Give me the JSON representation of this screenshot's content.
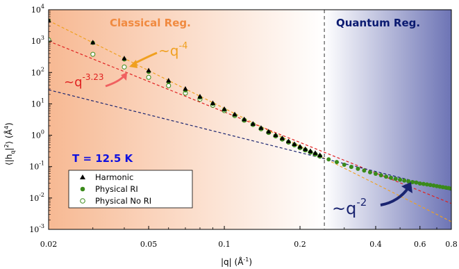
{
  "chart_data": {
    "type": "scatter",
    "xscale": "log",
    "yscale": "log",
    "xlim": [
      0.02,
      0.8
    ],
    "ylim": [
      0.001,
      10000
    ],
    "xlabel_main": "|q| (Å",
    "xlabel_sup": "-1",
    "xlabel_end": ")",
    "ylabel_main": "⟨|h",
    "ylabel_sub": "q",
    "ylabel_mid": "|",
    "ylabel_sup": "2",
    "ylabel_mid2": "⟩ (Å",
    "ylabel_sup2": "4",
    "ylabel_end": ")",
    "x_ticks": [
      {
        "value": 0.02,
        "label": "0.02"
      },
      {
        "value": 0.05,
        "label": "0.05"
      },
      {
        "value": 0.1,
        "label": "0.1"
      },
      {
        "value": 0.2,
        "label": "0.2"
      },
      {
        "value": 0.4,
        "label": "0.4"
      },
      {
        "value": 0.6,
        "label": "0.6"
      },
      {
        "value": 0.8,
        "label": "0.8"
      }
    ],
    "y_ticks": [
      {
        "exp": -3,
        "base": "10",
        "sup": "-3"
      },
      {
        "exp": -2,
        "base": "10",
        "sup": "-2"
      },
      {
        "exp": -1,
        "base": "10",
        "sup": "-1"
      },
      {
        "exp": 0,
        "base": "10",
        "sup": "0"
      },
      {
        "exp": 1,
        "base": "10",
        "sup": "1"
      },
      {
        "exp": 2,
        "base": "10",
        "sup": "2"
      },
      {
        "exp": 3,
        "base": "10",
        "sup": "3"
      },
      {
        "exp": 4,
        "base": "10",
        "sup": "4"
      }
    ],
    "regions": {
      "classical_label": "Classical Reg.",
      "quantum_label": "Quantum Reg.",
      "divider_x": 0.25
    },
    "temperature_label": "T = 12.5 K",
    "legend": {
      "position": "lower-left",
      "entries": [
        "Harmonic",
        "Physical RI",
        "Physical No RI"
      ]
    },
    "colors": {
      "classical_bg": "#f7b993",
      "quantum_bg": "#6d74b5",
      "slope4": "#f0a020",
      "slope323": "#e02020",
      "slope2": "#1a2470",
      "harmonic": "#000000",
      "physical_ri": "#3a8a1a",
      "no_ri": "#3a8a1a"
    },
    "fit_lines": [
      {
        "name": "slope4",
        "exponent": -4,
        "anchor_x": 0.02,
        "anchor_y": 4500
      },
      {
        "name": "slope323",
        "exponent": -3.23,
        "anchor_x": 0.02,
        "anchor_y": 1000
      },
      {
        "name": "slope2",
        "exponent": -2,
        "anchor_x": 0.02,
        "anchor_y": 28
      }
    ],
    "annotations": [
      {
        "base": "~q",
        "sup": "-4",
        "color": "#f0a020"
      },
      {
        "base": "~q",
        "sup": "-3.23",
        "color": "#e02020"
      },
      {
        "base": "~q",
        "sup": "-2",
        "color": "#1a2470"
      }
    ],
    "series": [
      {
        "name": "Harmonic",
        "x": [
          0.02,
          0.03,
          0.04,
          0.05,
          0.06,
          0.07,
          0.08,
          0.09,
          0.1,
          0.11,
          0.12,
          0.13,
          0.14,
          0.15,
          0.16,
          0.17,
          0.18,
          0.19,
          0.2,
          0.21,
          0.22,
          0.23,
          0.24
        ],
        "y": [
          4500,
          900,
          280,
          115,
          55,
          30,
          17,
          10.5,
          6.8,
          4.6,
          3.2,
          2.3,
          1.7,
          1.3,
          1.0,
          0.8,
          0.64,
          0.52,
          0.43,
          0.36,
          0.31,
          0.27,
          0.23
        ]
      },
      {
        "name": "Physical RI",
        "x": [
          0.02,
          0.03,
          0.04,
          0.05,
          0.06,
          0.07,
          0.08,
          0.09,
          0.1,
          0.11,
          0.12,
          0.13,
          0.14,
          0.15,
          0.16,
          0.17,
          0.18,
          0.19,
          0.2,
          0.21,
          0.22,
          0.23,
          0.24,
          0.26,
          0.28,
          0.3,
          0.32,
          0.34,
          0.36,
          0.38,
          0.4,
          0.42,
          0.44,
          0.46,
          0.48,
          0.5,
          0.52,
          0.54,
          0.56,
          0.58,
          0.6,
          0.62,
          0.64,
          0.66,
          0.68,
          0.7,
          0.72,
          0.74,
          0.76,
          0.78,
          0.8
        ],
        "y": [
          4500,
          880,
          260,
          105,
          50,
          27,
          16,
          10,
          6.5,
          4.4,
          3.1,
          2.25,
          1.65,
          1.25,
          0.97,
          0.77,
          0.62,
          0.5,
          0.41,
          0.34,
          0.29,
          0.25,
          0.215,
          0.17,
          0.14,
          0.115,
          0.098,
          0.085,
          0.075,
          0.066,
          0.059,
          0.053,
          0.048,
          0.044,
          0.041,
          0.038,
          0.036,
          0.034,
          0.032,
          0.031,
          0.029,
          0.028,
          0.027,
          0.026,
          0.025,
          0.024,
          0.023,
          0.0222,
          0.0215,
          0.0208,
          0.02
        ]
      },
      {
        "name": "Physical No RI",
        "x": [
          0.02,
          0.03,
          0.04,
          0.05,
          0.06,
          0.07,
          0.08,
          0.09,
          0.1,
          0.11,
          0.12,
          0.13,
          0.14,
          0.15,
          0.16,
          0.17,
          0.18,
          0.19,
          0.2,
          0.21,
          0.22,
          0.23,
          0.24
        ],
        "y": [
          1100,
          380,
          150,
          70,
          38,
          22,
          14,
          9,
          6.1,
          4.2,
          3.0,
          2.2,
          1.6,
          1.22,
          0.95,
          0.75,
          0.6,
          0.49,
          0.4,
          0.34,
          0.29,
          0.25,
          0.215
        ]
      }
    ]
  }
}
